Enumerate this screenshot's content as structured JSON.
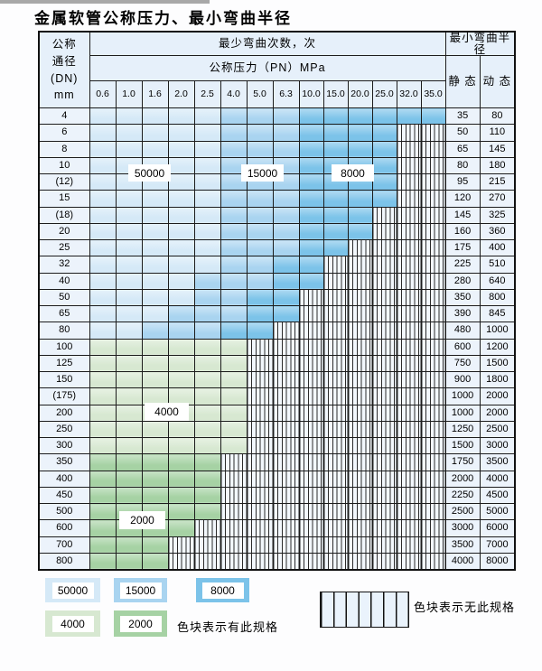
{
  "title": "金属软管公称压力、最小弯曲半径",
  "table": {
    "header": {
      "dn_label_lines": [
        "公称",
        "通径",
        "(DN)",
        "mm"
      ],
      "bend_cycles_label": "最少弯曲次数，次",
      "pressure_label": "公称压力（PN）MPa",
      "min_radius_label": "最小弯曲半径",
      "static_label": "静 态",
      "dynamic_label": "动 态",
      "pressure_columns": [
        "0.6",
        "1.0",
        "1.6",
        "2.0",
        "2.5",
        "4.0",
        "5.0",
        "6.3",
        "10.0",
        "15.0",
        "20.0",
        "25.0",
        "32.0",
        "35.0"
      ]
    },
    "zone_meaning": {
      "L": "50000次",
      "M": "15000次",
      "D": "8000次",
      "G": "4000次",
      "E": "2000次",
      "H": "无此规格"
    },
    "rows": [
      {
        "dn": "4",
        "pattern": "LLLLLMMMDDDDDD",
        "static": "35",
        "dynamic": "80"
      },
      {
        "dn": "6",
        "pattern": "LLLLLMMMDDDDHH",
        "static": "50",
        "dynamic": "110"
      },
      {
        "dn": "8",
        "pattern": "LLLLLMMMDDDDHH",
        "static": "65",
        "dynamic": "145"
      },
      {
        "dn": "10",
        "pattern": "LLLLLMMMDDDDHH",
        "static": "80",
        "dynamic": "180"
      },
      {
        "dn": "(12)",
        "pattern": "LLLLLMMMDDDDHH",
        "static": "95",
        "dynamic": "215"
      },
      {
        "dn": "15",
        "pattern": "LLLLLMMMDDDDHH",
        "static": "120",
        "dynamic": "270"
      },
      {
        "dn": "(18)",
        "pattern": "LLLLLMMMDDDHHH",
        "static": "145",
        "dynamic": "325"
      },
      {
        "dn": "20",
        "pattern": "LLLLLMMMDDDHHH",
        "static": "160",
        "dynamic": "360"
      },
      {
        "dn": "25",
        "pattern": "LLLLLMMMDDHHHH",
        "static": "175",
        "dynamic": "400"
      },
      {
        "dn": "32",
        "pattern": "LLLLLMMDDHHHHH",
        "static": "225",
        "dynamic": "510"
      },
      {
        "dn": "40",
        "pattern": "LLLLMMMDDHHHHH",
        "static": "280",
        "dynamic": "640"
      },
      {
        "dn": "50",
        "pattern": "LLLLMMDDHHHHHH",
        "static": "350",
        "dynamic": "800"
      },
      {
        "dn": "65",
        "pattern": "LLLMMMDDHHHHHH",
        "static": "390",
        "dynamic": "845"
      },
      {
        "dn": "80",
        "pattern": "LLMMMDDHHHHHHH",
        "static": "480",
        "dynamic": "1000"
      },
      {
        "dn": "100",
        "pattern": "GGGGGGHHHHHHHH",
        "static": "600",
        "dynamic": "1200"
      },
      {
        "dn": "125",
        "pattern": "GGGGGGHHHHHHHH",
        "static": "750",
        "dynamic": "1500"
      },
      {
        "dn": "150",
        "pattern": "GGGGGGHHHHHHHH",
        "static": "900",
        "dynamic": "1800"
      },
      {
        "dn": "(175)",
        "pattern": "GGGGGGHHHHHHHH",
        "static": "1000",
        "dynamic": "2000"
      },
      {
        "dn": "200",
        "pattern": "GGGGGGHHHHHHHH",
        "static": "1000",
        "dynamic": "2000"
      },
      {
        "dn": "250",
        "pattern": "GGGGGGHHHHHHHH",
        "static": "1250",
        "dynamic": "2500"
      },
      {
        "dn": "300",
        "pattern": "GGGGGGHHHHHHHH",
        "static": "1500",
        "dynamic": "3000"
      },
      {
        "dn": "350",
        "pattern": "EEEEEHHHHHHHHH",
        "static": "1750",
        "dynamic": "3500"
      },
      {
        "dn": "400",
        "pattern": "EEEEEHHHHHHHHH",
        "static": "2000",
        "dynamic": "4000"
      },
      {
        "dn": "450",
        "pattern": "EEEEEHHHHHHHHH",
        "static": "2250",
        "dynamic": "4500"
      },
      {
        "dn": "500",
        "pattern": "EEEEEHHHHHHHHH",
        "static": "2500",
        "dynamic": "5000"
      },
      {
        "dn": "600",
        "pattern": "EEEEHHHHHHHHHH",
        "static": "3000",
        "dynamic": "6000"
      },
      {
        "dn": "700",
        "pattern": "EEEHHHHHHHHHHH",
        "static": "3500",
        "dynamic": "7000"
      },
      {
        "dn": "800",
        "pattern": "EEEHHHHHHHHHHH",
        "static": "4000",
        "dynamic": "8000"
      }
    ]
  },
  "grid_labels": [
    {
      "id": "label-50000",
      "text": "50000"
    },
    {
      "id": "label-15000",
      "text": "15000"
    },
    {
      "id": "label-8000",
      "text": "8000"
    },
    {
      "id": "label-4000",
      "text": "4000"
    },
    {
      "id": "label-2000",
      "text": "2000"
    }
  ],
  "legend": {
    "items": [
      {
        "value": "50000",
        "zone": "L"
      },
      {
        "value": "15000",
        "zone": "M"
      },
      {
        "value": "8000",
        "zone": "D"
      },
      {
        "value": "4000",
        "zone": "G"
      },
      {
        "value": "2000",
        "zone": "E"
      }
    ],
    "has_spec_note": "色块表示有此规格",
    "no_spec_note": "色块表示无此规格"
  },
  "colors": {
    "L": "#d5e9f7",
    "M": "#a9d4f0",
    "D": "#7cc3e9",
    "G": "#d7e8d1",
    "E": "#a6d2a4",
    "hatch_bg": "#f3f8fd",
    "grid_line": "#1c1c1c",
    "header_bg": "#e6f0fa",
    "label_bg": "#ecf3fb"
  }
}
